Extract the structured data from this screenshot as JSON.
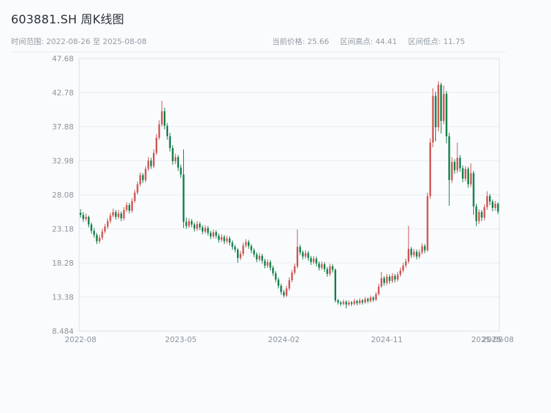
{
  "header": {
    "title": "603881.SH 周K线图",
    "time_range": "时间范围: 2022-08-26 至 2025-08-08",
    "stats": [
      {
        "label": "当前价格:",
        "value": "25.66"
      },
      {
        "label": "区间高点:",
        "value": "44.41"
      },
      {
        "label": "区间低点:",
        "value": "11.75"
      }
    ]
  },
  "chart_data": {
    "type": "candlestick",
    "title": "603881.SH 周K线图",
    "symbol": "603881.SH",
    "period": "weekly",
    "start_date": "2022-08-26",
    "end_date": "2025-08-08",
    "current_price": 25.66,
    "range_high": 44.41,
    "range_low": 11.75,
    "ylim": [
      8.484,
      47.68
    ],
    "y_ticks": [
      47.68,
      42.78,
      37.88,
      32.98,
      28.08,
      23.18,
      18.28,
      13.38,
      8.484
    ],
    "x_ticks": [
      {
        "index": 0,
        "label": "2022-08"
      },
      {
        "index": 37,
        "label": "2023-05"
      },
      {
        "index": 75,
        "label": "2024-02"
      },
      {
        "index": 113,
        "label": "2024-11"
      },
      {
        "index": 150,
        "label": "2025-08"
      },
      {
        "index": 154,
        "label": "2025-08"
      }
    ],
    "grid": true,
    "legend": false,
    "colors": {
      "up": "#cf5350",
      "down": "#0e7d45",
      "grid": "#e8eef3",
      "axis": "#d8e0e6",
      "tick_text": "#8b949c"
    },
    "candles": [
      [
        25.5,
        26.0,
        24.8,
        25.2
      ],
      [
        25.2,
        25.6,
        24.2,
        24.6
      ],
      [
        24.6,
        25.4,
        24.3,
        24.9
      ],
      [
        24.9,
        25.1,
        23.4,
        23.8
      ],
      [
        23.8,
        24.1,
        22.5,
        22.9
      ],
      [
        22.9,
        23.3,
        21.9,
        22.3
      ],
      [
        22.3,
        22.6,
        21.0,
        21.4
      ],
      [
        21.4,
        22.3,
        21.1,
        21.9
      ],
      [
        21.9,
        23.2,
        21.6,
        22.8
      ],
      [
        22.8,
        23.9,
        22.5,
        23.5
      ],
      [
        23.5,
        24.7,
        23.2,
        24.3
      ],
      [
        24.3,
        25.5,
        24.0,
        25.1
      ],
      [
        25.1,
        26.1,
        24.8,
        25.6
      ],
      [
        25.6,
        25.9,
        24.5,
        24.9
      ],
      [
        24.9,
        25.9,
        24.6,
        25.4
      ],
      [
        25.4,
        25.7,
        24.3,
        24.7
      ],
      [
        24.7,
        26.3,
        24.4,
        25.9
      ],
      [
        25.9,
        27.0,
        25.6,
        26.6
      ],
      [
        26.6,
        26.9,
        25.4,
        25.8
      ],
      [
        25.8,
        27.6,
        25.5,
        27.2
      ],
      [
        27.2,
        28.8,
        26.9,
        28.4
      ],
      [
        28.4,
        30.0,
        28.1,
        29.6
      ],
      [
        29.6,
        31.3,
        29.3,
        30.9
      ],
      [
        30.9,
        31.2,
        29.8,
        30.2
      ],
      [
        30.2,
        32.2,
        29.9,
        31.8
      ],
      [
        31.8,
        33.5,
        31.5,
        33.0
      ],
      [
        33.0,
        33.4,
        31.8,
        32.2
      ],
      [
        32.2,
        34.6,
        31.9,
        34.1
      ],
      [
        34.1,
        36.8,
        33.8,
        36.3
      ],
      [
        36.3,
        38.8,
        36.0,
        38.2
      ],
      [
        38.2,
        41.6,
        37.9,
        40.1
      ],
      [
        40.1,
        40.6,
        37.5,
        38.0
      ],
      [
        38.0,
        38.4,
        36.0,
        36.5
      ],
      [
        36.5,
        37.0,
        34.3,
        34.8
      ],
      [
        34.8,
        35.2,
        32.4,
        32.9
      ],
      [
        32.9,
        34.0,
        32.5,
        33.5
      ],
      [
        33.5,
        33.8,
        31.5,
        32.0
      ],
      [
        32.0,
        32.4,
        30.5,
        31.0
      ],
      [
        31.0,
        34.6,
        23.3,
        24.2
      ],
      [
        24.2,
        24.8,
        23.2,
        23.6
      ],
      [
        23.6,
        24.7,
        23.3,
        24.3
      ],
      [
        24.3,
        24.6,
        23.4,
        23.8
      ],
      [
        23.8,
        24.1,
        22.8,
        23.2
      ],
      [
        23.2,
        24.3,
        22.9,
        23.9
      ],
      [
        23.9,
        24.2,
        23.0,
        23.4
      ],
      [
        23.4,
        23.7,
        22.4,
        22.8
      ],
      [
        22.8,
        23.7,
        22.5,
        23.3
      ],
      [
        23.3,
        23.6,
        22.2,
        22.6
      ],
      [
        22.6,
        22.9,
        21.7,
        22.1
      ],
      [
        22.1,
        23.1,
        21.8,
        22.7
      ],
      [
        22.7,
        23.0,
        21.8,
        22.2
      ],
      [
        22.2,
        22.5,
        21.2,
        21.6
      ],
      [
        21.6,
        22.4,
        21.3,
        22.0
      ],
      [
        22.0,
        22.3,
        21.0,
        21.4
      ],
      [
        21.4,
        22.2,
        21.1,
        21.8
      ],
      [
        21.8,
        22.1,
        20.8,
        21.2
      ],
      [
        21.2,
        21.5,
        20.2,
        20.6
      ],
      [
        20.6,
        20.9,
        19.8,
        20.2
      ],
      [
        20.2,
        20.4,
        18.3,
        19.0
      ],
      [
        19.0,
        20.0,
        18.7,
        19.6
      ],
      [
        19.6,
        21.2,
        19.3,
        20.8
      ],
      [
        20.8,
        21.7,
        20.5,
        21.3
      ],
      [
        21.3,
        21.6,
        20.3,
        20.7
      ],
      [
        20.7,
        21.0,
        19.7,
        20.1
      ],
      [
        20.1,
        20.4,
        19.1,
        19.5
      ],
      [
        19.5,
        19.8,
        18.4,
        18.8
      ],
      [
        18.8,
        19.7,
        18.5,
        19.3
      ],
      [
        19.3,
        19.6,
        18.2,
        18.6
      ],
      [
        18.6,
        18.9,
        17.5,
        17.9
      ],
      [
        17.9,
        18.8,
        17.6,
        18.4
      ],
      [
        18.4,
        18.7,
        17.2,
        17.6
      ],
      [
        17.6,
        17.9,
        16.4,
        16.8
      ],
      [
        16.8,
        17.1,
        15.5,
        15.9
      ],
      [
        15.9,
        16.2,
        14.6,
        15.0
      ],
      [
        15.0,
        15.3,
        13.7,
        14.1
      ],
      [
        14.1,
        14.4,
        13.3,
        13.6
      ],
      [
        13.6,
        15.0,
        13.4,
        14.6
      ],
      [
        14.6,
        16.2,
        14.3,
        15.8
      ],
      [
        15.8,
        17.3,
        15.5,
        16.9
      ],
      [
        16.9,
        18.2,
        16.6,
        17.8
      ],
      [
        17.8,
        23.1,
        17.5,
        20.6
      ],
      [
        20.6,
        20.9,
        19.4,
        19.8
      ],
      [
        19.8,
        20.1,
        18.8,
        19.2
      ],
      [
        19.2,
        20.1,
        18.9,
        19.7
      ],
      [
        19.7,
        20.0,
        18.6,
        19.0
      ],
      [
        19.0,
        19.3,
        18.0,
        18.4
      ],
      [
        18.4,
        19.3,
        18.1,
        18.9
      ],
      [
        18.9,
        19.2,
        17.8,
        18.2
      ],
      [
        18.2,
        18.5,
        17.2,
        17.6
      ],
      [
        17.6,
        18.5,
        17.3,
        18.1
      ],
      [
        18.1,
        18.4,
        17.0,
        17.4
      ],
      [
        17.4,
        17.7,
        16.3,
        16.7
      ],
      [
        16.7,
        18.2,
        16.4,
        17.8
      ],
      [
        17.8,
        18.1,
        16.9,
        17.3
      ],
      [
        17.3,
        17.5,
        12.6,
        12.9
      ],
      [
        12.9,
        13.1,
        12.3,
        12.6
      ],
      [
        12.6,
        12.8,
        12.1,
        12.4
      ],
      [
        12.4,
        13.0,
        12.2,
        12.7
      ],
      [
        12.7,
        12.9,
        11.75,
        12.3
      ],
      [
        12.3,
        12.9,
        12.1,
        12.6
      ],
      [
        12.6,
        12.8,
        12.1,
        12.4
      ],
      [
        12.4,
        13.1,
        12.2,
        12.8
      ],
      [
        12.8,
        13.0,
        12.2,
        12.5
      ],
      [
        12.5,
        13.2,
        12.3,
        12.9
      ],
      [
        12.9,
        13.1,
        12.3,
        12.6
      ],
      [
        12.6,
        13.4,
        12.4,
        13.1
      ],
      [
        13.1,
        13.3,
        12.5,
        12.8
      ],
      [
        12.8,
        13.6,
        12.6,
        13.3
      ],
      [
        13.3,
        13.5,
        12.7,
        13.0
      ],
      [
        13.0,
        14.1,
        12.8,
        13.8
      ],
      [
        13.8,
        15.3,
        13.6,
        14.9
      ],
      [
        14.9,
        17.0,
        14.7,
        16.1
      ],
      [
        16.1,
        16.4,
        15.0,
        15.4
      ],
      [
        15.4,
        16.7,
        15.1,
        16.3
      ],
      [
        16.3,
        16.6,
        15.3,
        15.7
      ],
      [
        15.7,
        16.8,
        15.4,
        16.4
      ],
      [
        16.4,
        16.7,
        15.5,
        15.9
      ],
      [
        15.9,
        17.0,
        15.6,
        16.6
      ],
      [
        16.6,
        17.6,
        16.3,
        17.2
      ],
      [
        17.2,
        18.3,
        16.9,
        17.9
      ],
      [
        17.9,
        18.9,
        17.6,
        18.5
      ],
      [
        18.5,
        23.6,
        18.2,
        20.3
      ],
      [
        20.3,
        20.6,
        19.0,
        19.4
      ],
      [
        19.4,
        20.3,
        19.1,
        19.9
      ],
      [
        19.9,
        20.2,
        18.8,
        19.2
      ],
      [
        19.2,
        20.2,
        18.9,
        19.8
      ],
      [
        19.8,
        21.1,
        19.5,
        20.7
      ],
      [
        20.7,
        21.0,
        19.7,
        20.1
      ],
      [
        20.1,
        28.4,
        19.9,
        27.9
      ],
      [
        27.9,
        36.2,
        27.5,
        35.6
      ],
      [
        35.6,
        43.4,
        34.9,
        42.3
      ],
      [
        42.3,
        42.9,
        35.8,
        37.8
      ],
      [
        37.8,
        44.41,
        37.2,
        43.9
      ],
      [
        43.9,
        44.2,
        36.9,
        38.7
      ],
      [
        38.7,
        43.8,
        38.2,
        42.6
      ],
      [
        42.6,
        43.0,
        35.5,
        36.5
      ],
      [
        36.5,
        37.0,
        26.5,
        30.2
      ],
      [
        30.2,
        33.5,
        29.8,
        32.8
      ],
      [
        32.8,
        33.2,
        31.1,
        31.6
      ],
      [
        31.6,
        35.6,
        31.2,
        33.4
      ],
      [
        33.4,
        33.8,
        31.4,
        31.9
      ],
      [
        31.9,
        32.3,
        29.9,
        30.4
      ],
      [
        30.4,
        32.2,
        30.0,
        31.8
      ],
      [
        31.8,
        32.1,
        29.1,
        29.6
      ],
      [
        29.6,
        32.6,
        29.2,
        31.2
      ],
      [
        31.2,
        31.5,
        25.2,
        26.4
      ],
      [
        26.4,
        26.8,
        23.6,
        24.3
      ],
      [
        24.3,
        26.0,
        23.9,
        25.6
      ],
      [
        25.6,
        25.9,
        24.3,
        24.8
      ],
      [
        24.8,
        26.7,
        24.4,
        26.3
      ],
      [
        26.3,
        28.6,
        25.9,
        27.9
      ],
      [
        27.9,
        28.2,
        26.6,
        27.1
      ],
      [
        27.1,
        27.4,
        25.7,
        26.2
      ],
      [
        26.2,
        27.2,
        25.8,
        26.8
      ],
      [
        26.8,
        27.0,
        25.3,
        25.66
      ]
    ]
  }
}
